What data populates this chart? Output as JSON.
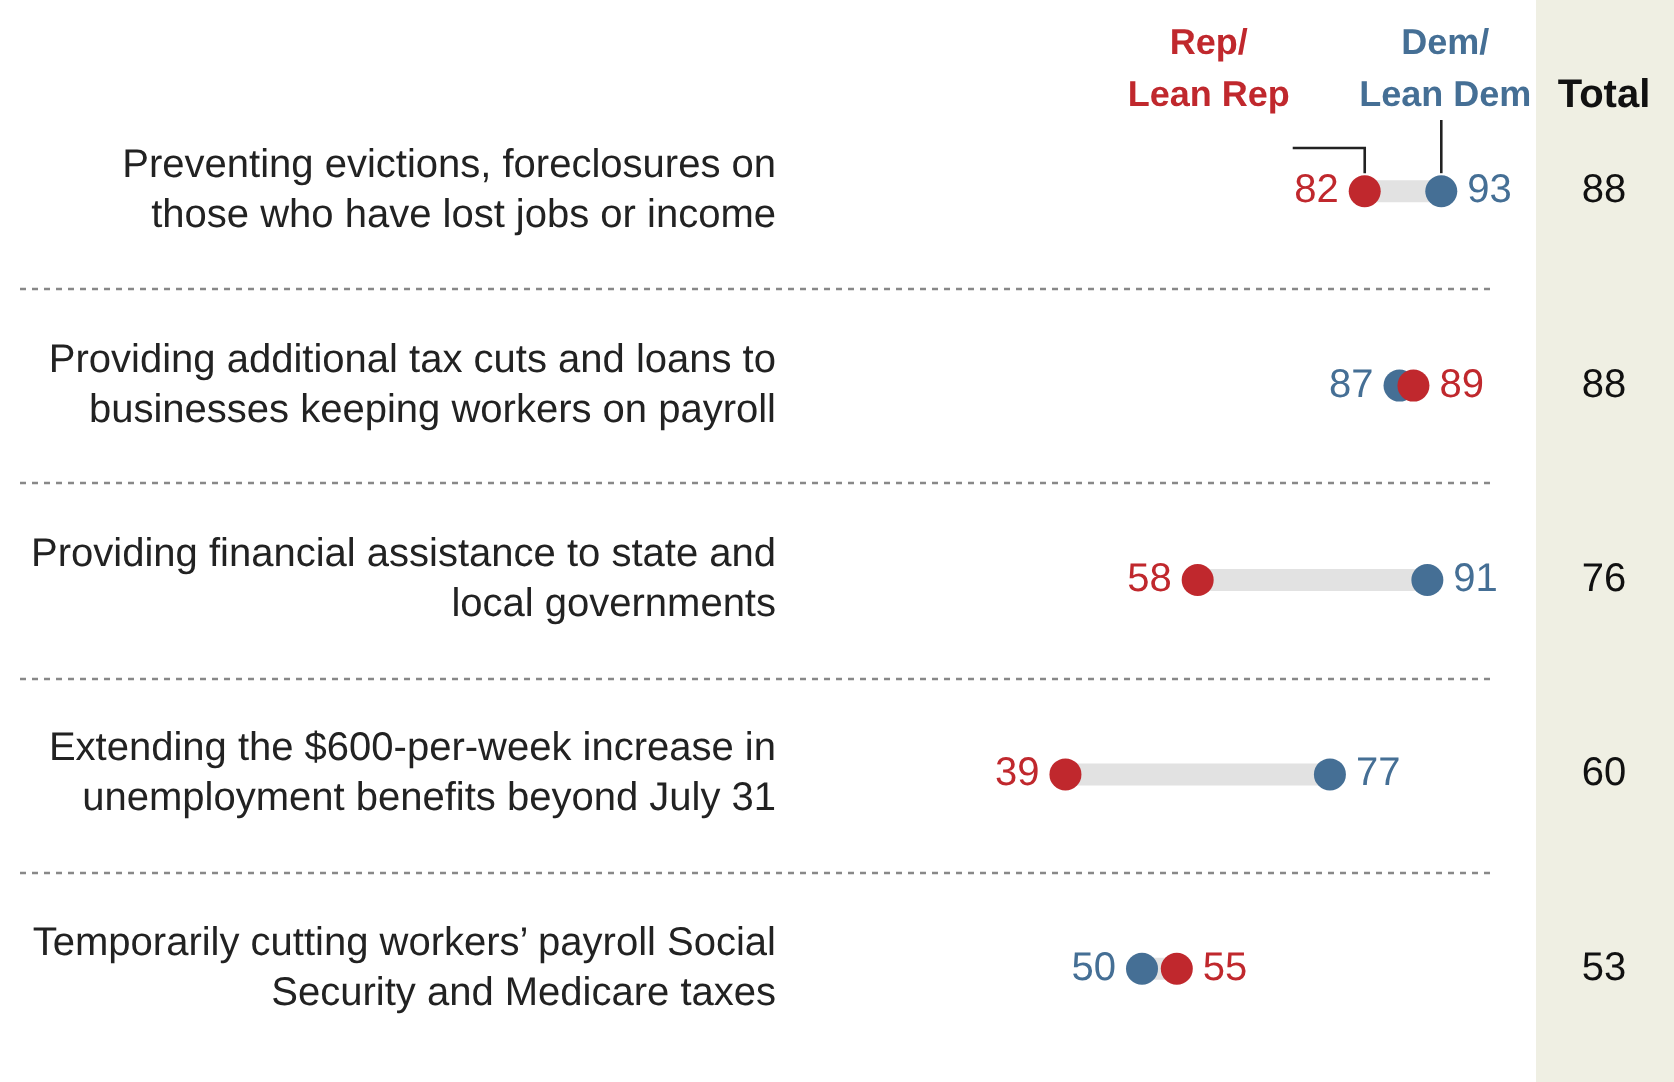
{
  "chart_data": {
    "type": "scatter",
    "orientation": "horizontal",
    "categories": [
      "Preventing evictions, foreclosures on those who have lost jobs or income",
      "Providing additional tax cuts and loans to businesses keeping workers on payroll",
      "Providing financial assistance to state and local governments",
      "Extending the $600-per-week increase in unemployment benefits beyond July 31",
      "Temporarily cutting workers’ payroll Social Security and Medicare taxes"
    ],
    "series": [
      {
        "name": "Rep/Lean Rep",
        "color": "#c0282d",
        "values": [
          82,
          89,
          58,
          39,
          55
        ]
      },
      {
        "name": "Dem/Lean Dem",
        "color": "#456f95",
        "values": [
          93,
          87,
          91,
          77,
          50
        ]
      }
    ],
    "totals": [
      "88",
      "88",
      "76",
      "60",
      "53"
    ],
    "annotations": [
      "Total"
    ],
    "tick_labels": false,
    "data_labels": true,
    "marker": "circle",
    "legend": "top",
    "grid": "y"
  }
}
